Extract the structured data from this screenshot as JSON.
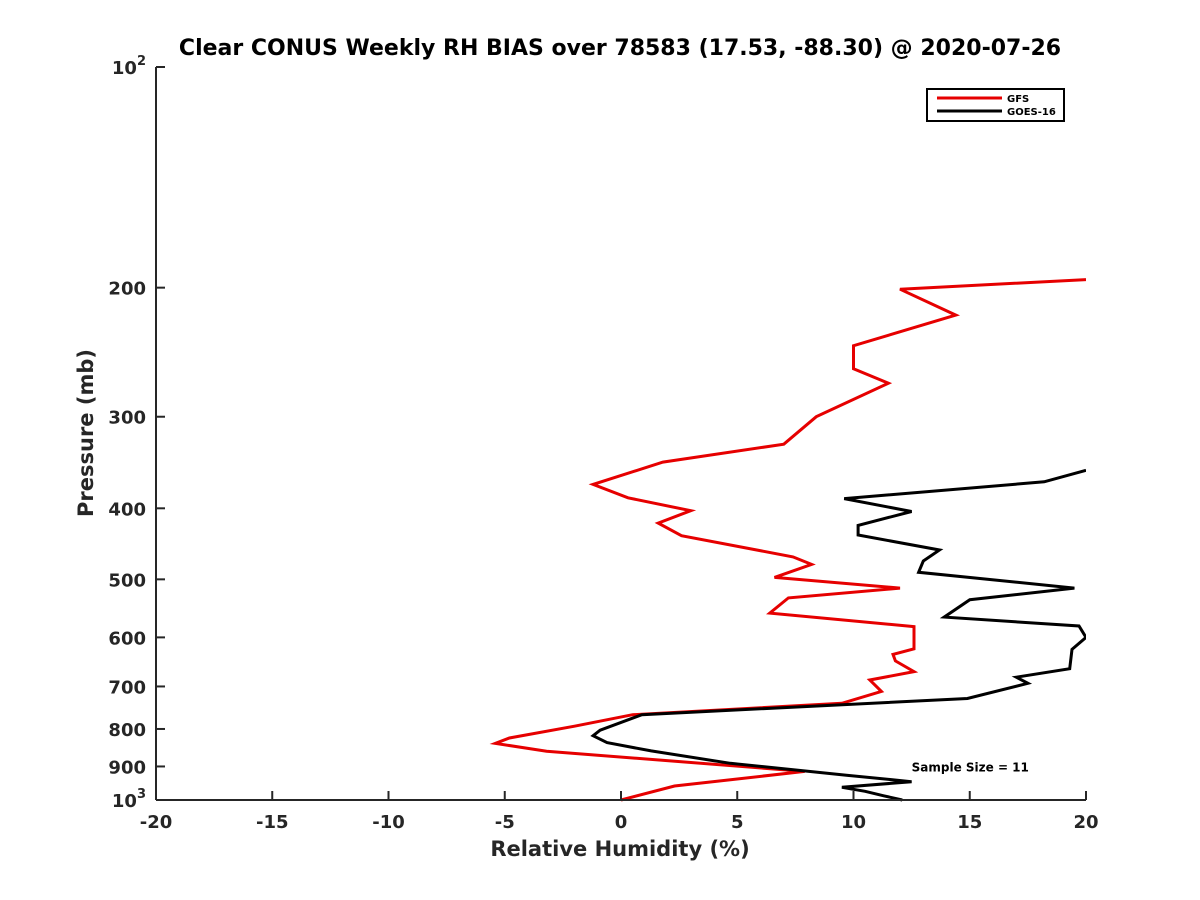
{
  "chart_data": {
    "type": "line",
    "title": "Clear CONUS Weekly RH BIAS over 78583 (17.53, -88.30) @ 2020-07-26",
    "xlabel": "Relative Humidity (%)",
    "ylabel": "Pressure (mb)",
    "xlim": [
      -20,
      20
    ],
    "ylim": [
      100,
      1000
    ],
    "yscale": "log",
    "y_reversed": true,
    "grid": false,
    "legend_position": "top-right",
    "x_ticks": [
      {
        "value": -20,
        "label": "-20"
      },
      {
        "value": -15,
        "label": "-15"
      },
      {
        "value": -10,
        "label": "-10"
      },
      {
        "value": -5,
        "label": "-5"
      },
      {
        "value": 0,
        "label": "0"
      },
      {
        "value": 5,
        "label": "5"
      },
      {
        "value": 10,
        "label": "10"
      },
      {
        "value": 15,
        "label": "15"
      },
      {
        "value": 20,
        "label": "20"
      }
    ],
    "y_ticks": [
      {
        "value": 100,
        "base": "10",
        "exp": "2"
      },
      {
        "value": 200,
        "label": "200"
      },
      {
        "value": 300,
        "label": "300"
      },
      {
        "value": 400,
        "label": "400"
      },
      {
        "value": 500,
        "label": "500"
      },
      {
        "value": 600,
        "label": "600"
      },
      {
        "value": 700,
        "label": "700"
      },
      {
        "value": 800,
        "label": "800"
      },
      {
        "value": 900,
        "label": "900"
      },
      {
        "value": 1000,
        "base": "10",
        "exp": "3"
      }
    ],
    "series": [
      {
        "name": "GFS",
        "color": "#e60000",
        "x": [
          20,
          12.0,
          14.4,
          10.0,
          10.0,
          11.5,
          8.4,
          7.0,
          1.8,
          -1.2,
          0.3,
          3.0,
          1.6,
          2.6,
          7.4,
          8.2,
          6.6,
          12.0,
          7.2,
          6.4,
          12.6,
          12.6,
          11.7,
          11.8,
          12.6,
          10.7,
          11.2,
          9.5,
          0.5,
          -2.0,
          -4.8,
          -5.4,
          -3.2,
          7.9,
          2.3,
          0.0
        ],
        "y": [
          195,
          201,
          218,
          240,
          258,
          270,
          300,
          327,
          346,
          371,
          387,
          403,
          419,
          436,
          466,
          477,
          497,
          514,
          530,
          556,
          580,
          622,
          633,
          646,
          668,
          686,
          711,
          738,
          765,
          793,
          823,
          837,
          858,
          914,
          957,
          1000
        ]
      },
      {
        "name": "GOES-16",
        "color": "#000000",
        "x": [
          20,
          18.2,
          9.6,
          12.5,
          10.2,
          10.2,
          13.7,
          13.0,
          12.8,
          19.5,
          15.0,
          13.9,
          19.7,
          20.0,
          19.4,
          19.3,
          17.0,
          17.5,
          14.9,
          0.9,
          -0.9,
          -1.2,
          -0.6,
          1.3,
          4.7,
          9.7,
          12.5,
          9.5,
          10.5,
          11.3,
          12.1
        ],
        "y": [
          355,
          368,
          388,
          404,
          422,
          435,
          456,
          472,
          489,
          514,
          533,
          563,
          579,
          600,
          623,
          662,
          680,
          693,
          727,
          765,
          803,
          817,
          835,
          857,
          891,
          925,
          944,
          961,
          973,
          987,
          1000
        ]
      }
    ],
    "annotations": [
      {
        "text": "Sample Size = 11",
        "x": 12.5,
        "y": 900
      }
    ]
  }
}
